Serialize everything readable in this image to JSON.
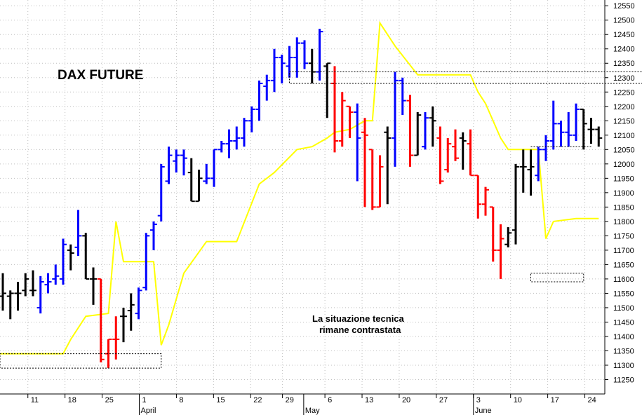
{
  "chart_data": {
    "type": "ohlc",
    "title": "DAX FUTURE",
    "annotation": [
      "La situazione tecnica",
      "rimane contrastata"
    ],
    "ylim": [
      11200,
      12570
    ],
    "y_ticks": [
      11250,
      11300,
      11350,
      11400,
      11450,
      11500,
      11550,
      11600,
      11650,
      11700,
      11750,
      11800,
      11850,
      11900,
      11950,
      12000,
      12050,
      12100,
      12150,
      12200,
      12250,
      12300,
      12350,
      12400,
      12450,
      12500,
      12550
    ],
    "x_day_range": [
      -2,
      63
    ],
    "x_ticks": [
      {
        "day": 10,
        "label": "11"
      },
      {
        "day": 17,
        "label": "18"
      },
      {
        "day": 24,
        "label": "25"
      },
      {
        "day": 31,
        "label": "1"
      },
      {
        "day": 38,
        "label": "8"
      },
      {
        "day": 45,
        "label": "15"
      },
      {
        "day": 52,
        "label": "22"
      },
      {
        "day": 58,
        "label": "29"
      },
      {
        "day": 66,
        "label": "6"
      },
      {
        "day": 73,
        "label": "13"
      },
      {
        "day": 80,
        "label": "20"
      },
      {
        "day": 87,
        "label": "27"
      },
      {
        "day": 94,
        "label": "3"
      },
      {
        "day": 101,
        "label": "10"
      },
      {
        "day": 108,
        "label": "17"
      },
      {
        "day": 115,
        "label": "24"
      }
    ],
    "months": [
      {
        "day": 31,
        "label": "April"
      },
      {
        "day": 62,
        "label": "May"
      },
      {
        "day": 94,
        "label": "June"
      }
    ],
    "colors": {
      "up": "#0000ff",
      "down": "#ff0000",
      "neutral": "#000000",
      "trail": "#ffff00"
    },
    "bars": [
      {
        "x": 0,
        "o": 11540,
        "h": 11620,
        "l": 11490,
        "c": 11550,
        "t": "n"
      },
      {
        "x": 1,
        "o": 11540,
        "h": 11560,
        "l": 11460,
        "c": 11550,
        "t": "n"
      },
      {
        "x": 2,
        "o": 11550,
        "h": 11590,
        "l": 11490,
        "c": 11550,
        "t": "n"
      },
      {
        "x": 3,
        "o": 11560,
        "h": 11620,
        "l": 11540,
        "c": 11600,
        "t": "n"
      },
      {
        "x": 4,
        "o": 11560,
        "h": 11630,
        "l": 11540,
        "c": 11560,
        "t": "n"
      },
      {
        "x": 5,
        "o": 11500,
        "h": 11610,
        "l": 11480,
        "c": 11590,
        "t": "u"
      },
      {
        "x": 6,
        "o": 11580,
        "h": 11620,
        "l": 11550,
        "c": 11590,
        "t": "u"
      },
      {
        "x": 7,
        "o": 11600,
        "h": 11650,
        "l": 11580,
        "c": 11610,
        "t": "u"
      },
      {
        "x": 8,
        "o": 11600,
        "h": 11740,
        "l": 11580,
        "c": 11720,
        "t": "u"
      },
      {
        "x": 9,
        "o": 11700,
        "h": 11720,
        "l": 11630,
        "c": 11690,
        "t": "n"
      },
      {
        "x": 10,
        "o": 11710,
        "h": 11840,
        "l": 11680,
        "c": 11750,
        "t": "u"
      },
      {
        "x": 11,
        "o": 11750,
        "h": 11760,
        "l": 11600,
        "c": 11600,
        "t": "n"
      },
      {
        "x": 12,
        "o": 11600,
        "h": 11640,
        "l": 11510,
        "c": 11600,
        "t": "n"
      },
      {
        "x": 13,
        "o": 11600,
        "h": 11600,
        "l": 11310,
        "c": 11320,
        "t": "d"
      },
      {
        "x": 14,
        "o": 11340,
        "h": 11390,
        "l": 11290,
        "c": 11390,
        "t": "d"
      },
      {
        "x": 15,
        "o": 11390,
        "h": 11470,
        "l": 11320,
        "c": 11390,
        "t": "d"
      },
      {
        "x": 16,
        "o": 11470,
        "h": 11500,
        "l": 11380,
        "c": 11470,
        "t": "n"
      },
      {
        "x": 17,
        "o": 11490,
        "h": 11550,
        "l": 11420,
        "c": 11510,
        "t": "n"
      },
      {
        "x": 18,
        "o": 11480,
        "h": 11570,
        "l": 11460,
        "c": 11560,
        "t": "u"
      },
      {
        "x": 19,
        "o": 11570,
        "h": 11760,
        "l": 11560,
        "c": 11750,
        "t": "u"
      },
      {
        "x": 20,
        "o": 11770,
        "h": 11800,
        "l": 11700,
        "c": 11790,
        "t": "u"
      },
      {
        "x": 21,
        "o": 11820,
        "h": 12000,
        "l": 11800,
        "c": 11990,
        "t": "u"
      },
      {
        "x": 22,
        "o": 11940,
        "h": 12060,
        "l": 11930,
        "c": 12030,
        "t": "u"
      },
      {
        "x": 23,
        "o": 12010,
        "h": 12050,
        "l": 11970,
        "c": 12030,
        "t": "u"
      },
      {
        "x": 24,
        "o": 12030,
        "h": 12050,
        "l": 11960,
        "c": 12020,
        "t": "u"
      },
      {
        "x": 25,
        "o": 11970,
        "h": 12020,
        "l": 11870,
        "c": 11870,
        "t": "n"
      },
      {
        "x": 26,
        "o": 11870,
        "h": 11980,
        "l": 11870,
        "c": 11950,
        "t": "n"
      },
      {
        "x": 27,
        "o": 11940,
        "h": 12000,
        "l": 11930,
        "c": 11950,
        "t": "u"
      },
      {
        "x": 28,
        "o": 11950,
        "h": 12050,
        "l": 11920,
        "c": 12050,
        "t": "u"
      },
      {
        "x": 29,
        "o": 12050,
        "h": 12080,
        "l": 12040,
        "c": 12070,
        "t": "u"
      },
      {
        "x": 30,
        "o": 12070,
        "h": 12120,
        "l": 12020,
        "c": 12080,
        "t": "u"
      },
      {
        "x": 31,
        "o": 12080,
        "h": 12130,
        "l": 12050,
        "c": 12090,
        "t": "u"
      },
      {
        "x": 32,
        "o": 12090,
        "h": 12160,
        "l": 12060,
        "c": 12150,
        "t": "u"
      },
      {
        "x": 33,
        "o": 12150,
        "h": 12200,
        "l": 12110,
        "c": 12190,
        "t": "u"
      },
      {
        "x": 34,
        "o": 12190,
        "h": 12290,
        "l": 12150,
        "c": 12280,
        "t": "u"
      },
      {
        "x": 35,
        "o": 12270,
        "h": 12310,
        "l": 12220,
        "c": 12290,
        "t": "u"
      },
      {
        "x": 36,
        "o": 12290,
        "h": 12400,
        "l": 12250,
        "c": 12370,
        "t": "u"
      },
      {
        "x": 37,
        "o": 12370,
        "h": 12380,
        "l": 12280,
        "c": 12350,
        "t": "u"
      },
      {
        "x": 38,
        "o": 12340,
        "h": 12410,
        "l": 12300,
        "c": 12370,
        "t": "u"
      },
      {
        "x": 39,
        "o": 12370,
        "h": 12440,
        "l": 12300,
        "c": 12420,
        "t": "u"
      },
      {
        "x": 40,
        "o": 12420,
        "h": 12430,
        "l": 12330,
        "c": 12350,
        "t": "u"
      },
      {
        "x": 41,
        "o": 12350,
        "h": 12400,
        "l": 12280,
        "c": 12320,
        "t": "n"
      },
      {
        "x": 42,
        "o": 12320,
        "h": 12470,
        "l": 12290,
        "c": 12460,
        "t": "u"
      },
      {
        "x": 43,
        "o": 12340,
        "h": 12350,
        "l": 12160,
        "c": 12350,
        "t": "n"
      },
      {
        "x": 44,
        "o": 12280,
        "h": 12340,
        "l": 12040,
        "c": 12080,
        "t": "d"
      },
      {
        "x": 45,
        "o": 12080,
        "h": 12250,
        "l": 12060,
        "c": 12220,
        "t": "d"
      },
      {
        "x": 46,
        "o": 12200,
        "h": 12200,
        "l": 12090,
        "c": 12180,
        "t": "d"
      },
      {
        "x": 47,
        "o": 12180,
        "h": 12210,
        "l": 11940,
        "c": 12090,
        "t": "u"
      },
      {
        "x": 48,
        "o": 12110,
        "h": 12160,
        "l": 11850,
        "c": 12100,
        "t": "d"
      },
      {
        "x": 49,
        "o": 12050,
        "h": 12050,
        "l": 11840,
        "c": 11850,
        "t": "d"
      },
      {
        "x": 50,
        "o": 11850,
        "h": 12030,
        "l": 11850,
        "c": 11990,
        "t": "d"
      },
      {
        "x": 51,
        "o": 12110,
        "h": 12130,
        "l": 11860,
        "c": 12090,
        "t": "n"
      },
      {
        "x": 52,
        "o": 12090,
        "h": 12320,
        "l": 11990,
        "c": 12290,
        "t": "u"
      },
      {
        "x": 53,
        "o": 12290,
        "h": 12300,
        "l": 12170,
        "c": 12220,
        "t": "u"
      },
      {
        "x": 54,
        "o": 12220,
        "h": 12240,
        "l": 11990,
        "c": 12030,
        "t": "d"
      },
      {
        "x": 55,
        "o": 12030,
        "h": 12180,
        "l": 12030,
        "c": 12170,
        "t": "n"
      },
      {
        "x": 56,
        "o": 12060,
        "h": 12180,
        "l": 12050,
        "c": 12160,
        "t": "u"
      },
      {
        "x": 57,
        "o": 12160,
        "h": 12200,
        "l": 12060,
        "c": 12150,
        "t": "n"
      },
      {
        "x": 58,
        "o": 12090,
        "h": 12130,
        "l": 11930,
        "c": 11940,
        "t": "d"
      },
      {
        "x": 59,
        "o": 11980,
        "h": 12090,
        "l": 11970,
        "c": 12070,
        "t": "d"
      },
      {
        "x": 60,
        "o": 12060,
        "h": 12120,
        "l": 12010,
        "c": 12020,
        "t": "d"
      },
      {
        "x": 61,
        "o": 12090,
        "h": 12110,
        "l": 11980,
        "c": 12080,
        "t": "n"
      },
      {
        "x": 62,
        "o": 12070,
        "h": 12120,
        "l": 11960,
        "c": 11960,
        "t": "d"
      },
      {
        "x": 63,
        "o": 11960,
        "h": 11960,
        "l": 11810,
        "c": 11860,
        "t": "d"
      },
      {
        "x": 64,
        "o": 11860,
        "h": 11920,
        "l": 11820,
        "c": 11910,
        "t": "d"
      },
      {
        "x": 65,
        "o": 11850,
        "h": 11850,
        "l": 11660,
        "c": 11700,
        "t": "d"
      },
      {
        "x": 66,
        "o": 11700,
        "h": 11790,
        "l": 11600,
        "c": 11740,
        "t": "d"
      },
      {
        "x": 67,
        "o": 11720,
        "h": 11780,
        "l": 11710,
        "c": 11760,
        "t": "n"
      },
      {
        "x": 68,
        "o": 11770,
        "h": 12000,
        "l": 11720,
        "c": 11990,
        "t": "n"
      },
      {
        "x": 69,
        "o": 11990,
        "h": 12050,
        "l": 11900,
        "c": 11990,
        "t": "n"
      },
      {
        "x": 70,
        "o": 11980,
        "h": 12050,
        "l": 11890,
        "c": 11990,
        "t": "n"
      },
      {
        "x": 71,
        "o": 11960,
        "h": 12060,
        "l": 11940,
        "c": 12050,
        "t": "u"
      },
      {
        "x": 72,
        "o": 12050,
        "h": 12100,
        "l": 12010,
        "c": 12080,
        "t": "u"
      },
      {
        "x": 73,
        "o": 12080,
        "h": 12220,
        "l": 12050,
        "c": 12140,
        "t": "u"
      },
      {
        "x": 74,
        "o": 12140,
        "h": 12150,
        "l": 12060,
        "c": 12110,
        "t": "u"
      },
      {
        "x": 75,
        "o": 12110,
        "h": 12180,
        "l": 12060,
        "c": 12100,
        "t": "u"
      },
      {
        "x": 76,
        "o": 12100,
        "h": 12210,
        "l": 12080,
        "c": 12190,
        "t": "u"
      },
      {
        "x": 77,
        "o": 12190,
        "h": 12190,
        "l": 12050,
        "c": 12140,
        "t": "n"
      },
      {
        "x": 78,
        "o": 12120,
        "h": 12160,
        "l": 12070,
        "c": 12120,
        "t": "n"
      },
      {
        "x": 79,
        "o": 12120,
        "h": 12130,
        "l": 12060,
        "c": 12090,
        "t": "n"
      }
    ],
    "trailing_line": [
      {
        "x": -2,
        "y": 11340
      },
      {
        "x": 8,
        "y": 11340
      },
      {
        "x": 9,
        "y": 11390
      },
      {
        "x": 11,
        "y": 11470
      },
      {
        "x": 14,
        "y": 11480
      },
      {
        "x": 15,
        "y": 11800
      },
      {
        "x": 16,
        "y": 11660
      },
      {
        "x": 20,
        "y": 11660
      },
      {
        "x": 21,
        "y": 11370
      },
      {
        "x": 22,
        "y": 11440
      },
      {
        "x": 24,
        "y": 11620
      },
      {
        "x": 27,
        "y": 11730
      },
      {
        "x": 31,
        "y": 11730
      },
      {
        "x": 34,
        "y": 11930
      },
      {
        "x": 36,
        "y": 11970
      },
      {
        "x": 39,
        "y": 12050
      },
      {
        "x": 41,
        "y": 12060
      },
      {
        "x": 43,
        "y": 12090
      },
      {
        "x": 44,
        "y": 12110
      },
      {
        "x": 46,
        "y": 12120
      },
      {
        "x": 48,
        "y": 12150
      },
      {
        "x": 49,
        "y": 12150
      },
      {
        "x": 50,
        "y": 12490
      },
      {
        "x": 52,
        "y": 12410
      },
      {
        "x": 55,
        "y": 12310
      },
      {
        "x": 62,
        "y": 12310
      },
      {
        "x": 63,
        "y": 12250
      },
      {
        "x": 64,
        "y": 12210
      },
      {
        "x": 66,
        "y": 12090
      },
      {
        "x": 67,
        "y": 12050
      },
      {
        "x": 71,
        "y": 12050
      },
      {
        "x": 72,
        "y": 11740
      },
      {
        "x": 73,
        "y": 11800
      },
      {
        "x": 76,
        "y": 11810
      },
      {
        "x": 79,
        "y": 11810
      }
    ],
    "boxes": [
      {
        "x1": -2,
        "x2": 21,
        "y1": 11290,
        "y2": 11340
      },
      {
        "x1": 38,
        "x2": 88,
        "y1": 12280,
        "y2": 12320
      },
      {
        "x1": 70,
        "x2": 78,
        "y1": 12060,
        "y2": 12060
      },
      {
        "x1": 70,
        "x2": 77,
        "y1": 11590,
        "y2": 11620
      }
    ]
  }
}
